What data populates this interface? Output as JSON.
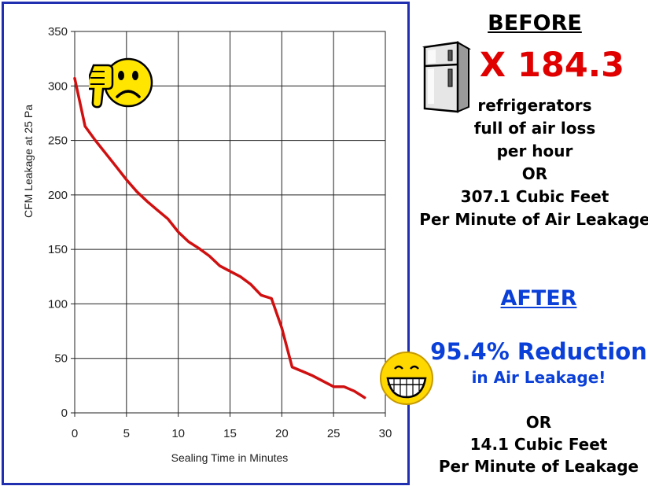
{
  "chart_data": {
    "type": "line",
    "xlabel": "Sealing Time in Minutes",
    "ylabel": "CFM Leakage at 25 Pa",
    "xlim": [
      0,
      30
    ],
    "ylim": [
      0,
      350
    ],
    "x_ticks": [
      0,
      5,
      10,
      15,
      20,
      25,
      30
    ],
    "y_ticks": [
      0,
      50,
      100,
      150,
      200,
      250,
      300,
      350
    ],
    "grid": true,
    "series": [
      {
        "color": "#d01010",
        "x": [
          0,
          1,
          2,
          3,
          4,
          5,
          6,
          7,
          8,
          9,
          10,
          11,
          12,
          13,
          14,
          15,
          16,
          17,
          18,
          19,
          20,
          21,
          22,
          23,
          24,
          25,
          26,
          27,
          28
        ],
        "y": [
          307,
          263,
          250,
          238,
          226,
          214,
          203,
          194,
          186,
          178,
          166,
          157,
          151,
          144,
          135,
          130,
          125,
          118,
          108,
          105,
          78,
          42,
          38,
          34,
          29,
          24,
          24,
          20,
          14
        ]
      }
    ]
  },
  "before": {
    "title": "BEFORE",
    "multiplier": "X 184.3",
    "lines": [
      "refrigerators",
      "full of air loss",
      "per hour",
      "OR",
      "307.1 Cubic Feet",
      "Per Minute of Air Leakage"
    ]
  },
  "after": {
    "title": "AFTER",
    "reduction": "95.4% Reduction",
    "reduction_sub": "in Air Leakage!",
    "lines": [
      "OR",
      "14.1 Cubic Feet",
      "Per Minute of Leakage"
    ]
  },
  "icons": {
    "fridge": "refrigerator-icon",
    "sad": "thumbs-down-sad-face-icon",
    "happy": "grinning-face-icon"
  },
  "colors": {
    "frame_border": "#1f2fb0",
    "line": "#d01010",
    "before_multiplier": "#e00000",
    "after_text": "#0a3fd8"
  }
}
